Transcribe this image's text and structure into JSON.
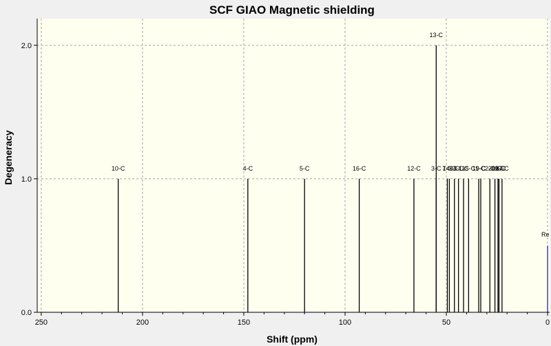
{
  "chart_data": {
    "type": "bar",
    "title": "SCF GIAO Magnetic shielding",
    "xlabel": "Shift (ppm)",
    "ylabel": "Degeneracy",
    "xlim": [
      252,
      -1
    ],
    "ylim": [
      0,
      2.2
    ],
    "x_reversed": true,
    "grid": true,
    "x_ticks": [
      "250",
      "200",
      "150",
      "100",
      "50",
      "0"
    ],
    "y_ticks": [
      "0.0",
      "1.0",
      "2.0"
    ],
    "plot_background": "#fffff0",
    "window_background": "#f0f0f0",
    "grid_color": "#a0a0a0",
    "peak_color": "#000000",
    "reference_color": "#3f3faf",
    "peaks": [
      {
        "label": "10-C",
        "shift": 212,
        "degeneracy": 1
      },
      {
        "label": "4-C",
        "shift": 148,
        "degeneracy": 1
      },
      {
        "label": "5-C",
        "shift": 120,
        "degeneracy": 1
      },
      {
        "label": "16-C",
        "shift": 93,
        "degeneracy": 1
      },
      {
        "label": "12-C",
        "shift": 66,
        "degeneracy": 1
      },
      {
        "label": "13-C",
        "shift": 55,
        "degeneracy": 2
      },
      {
        "label": "3-C",
        "shift": 55,
        "degeneracy": 1
      },
      {
        "label": "7-C",
        "shift": 49.5,
        "degeneracy": 1
      },
      {
        "label": "14-C",
        "shift": 48.5,
        "degeneracy": 1
      },
      {
        "label": "6-C",
        "shift": 46,
        "degeneracy": 1
      },
      {
        "label": "8-C",
        "shift": 44,
        "degeneracy": 1
      },
      {
        "label": "1-C",
        "shift": 41.5,
        "degeneracy": 1
      },
      {
        "label": "15-C",
        "shift": 39,
        "degeneracy": 1
      },
      {
        "label": "11-C",
        "shift": 34,
        "degeneracy": 1
      },
      {
        "label": "9-C",
        "shift": 33,
        "degeneracy": 1
      },
      {
        "label": "2-C",
        "shift": 28.5,
        "degeneracy": 1
      },
      {
        "label": "20-C",
        "shift": 26,
        "degeneracy": 1
      },
      {
        "label": "19-C",
        "shift": 24.5,
        "degeneracy": 1
      },
      {
        "label": "18-C",
        "shift": 24,
        "degeneracy": 1
      },
      {
        "label": "17-C",
        "shift": 22.5,
        "degeneracy": 1
      }
    ],
    "reference": {
      "label": "Re",
      "shift": 0,
      "degeneracy": 0.5
    }
  }
}
